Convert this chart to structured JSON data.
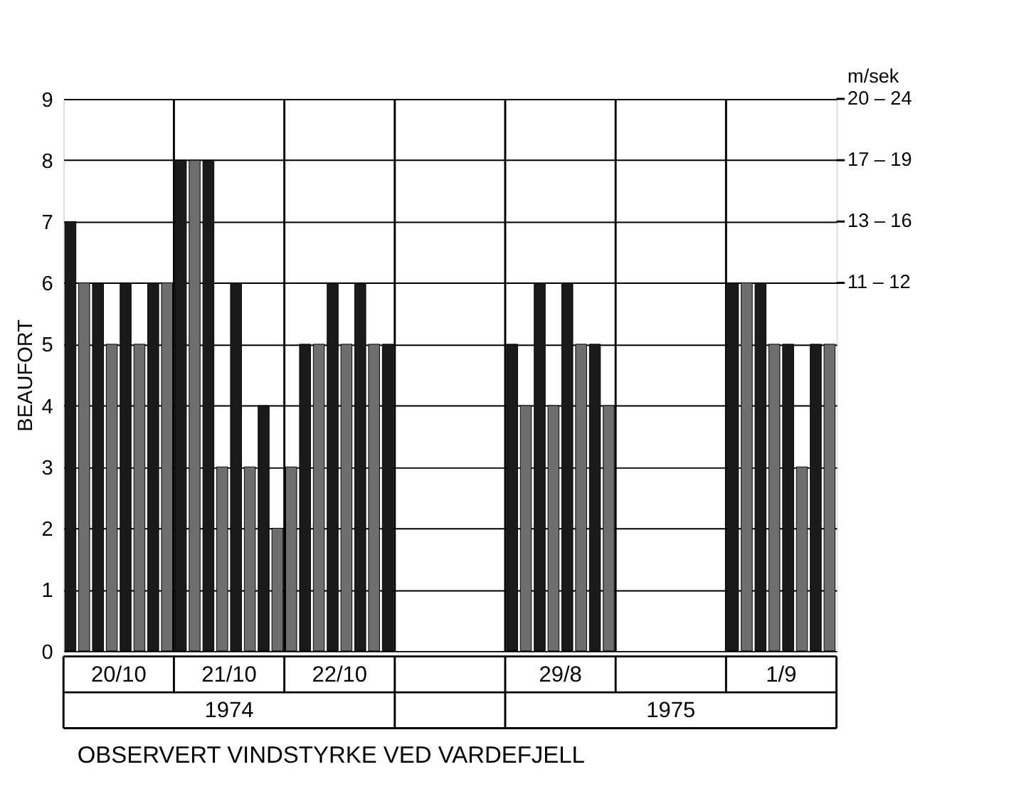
{
  "chart_data": {
    "type": "bar",
    "title": "OBSERVERT  VINDSTYRKE VED VARDEFJELL",
    "ylabel": "BEAUFORT",
    "y2label": "m/sek",
    "categories": [
      null,
      null,
      null,
      "20/10",
      null,
      null,
      null,
      null,
      null,
      null,
      null,
      "21/10",
      null,
      null,
      null,
      null,
      null,
      null,
      null,
      "22/10",
      null,
      null,
      null,
      null,
      null,
      null,
      null,
      null,
      null,
      null,
      null,
      null,
      null,
      null,
      null,
      "29/8",
      null,
      null,
      null,
      null,
      null,
      null,
      null,
      null,
      null,
      null,
      null,
      null,
      null,
      null,
      null,
      "1/9",
      null,
      null,
      null,
      null
    ],
    "values": [
      7,
      6,
      6,
      5,
      6,
      5,
      6,
      6,
      8,
      8,
      8,
      3,
      6,
      3,
      4,
      2,
      3,
      5,
      5,
      6,
      5,
      6,
      5,
      5,
      null,
      null,
      null,
      null,
      null,
      null,
      null,
      null,
      5,
      4,
      6,
      4,
      6,
      5,
      5,
      4,
      null,
      null,
      null,
      null,
      null,
      null,
      null,
      null,
      6,
      6,
      6,
      5,
      5,
      3,
      5,
      5
    ],
    "colors": [
      "#1a1a1a",
      "#6e6e6e",
      "#1a1a1a",
      "#6e6e6e",
      "#1a1a1a",
      "#6e6e6e",
      "#1a1a1a",
      "#6e6e6e",
      "#1a1a1a",
      "#6e6e6e",
      "#1a1a1a",
      "#6e6e6e",
      "#1a1a1a",
      "#6e6e6e",
      "#1a1a1a",
      "#6e6e6e",
      "#6e6e6e",
      "#1a1a1a",
      "#6e6e6e",
      "#1a1a1a",
      "#6e6e6e",
      "#1a1a1a",
      "#6e6e6e",
      "#1a1a1a",
      null,
      null,
      null,
      null,
      null,
      null,
      null,
      null,
      "#1a1a1a",
      "#6e6e6e",
      "#1a1a1a",
      "#6e6e6e",
      "#1a1a1a",
      "#6e6e6e",
      "#1a1a1a",
      "#6e6e6e",
      null,
      null,
      null,
      null,
      null,
      null,
      null,
      null,
      "#1a1a1a",
      "#6e6e6e",
      "#1a1a1a",
      "#6e6e6e",
      "#1a1a1a",
      "#6e6e6e",
      "#1a1a1a",
      "#6e6e6e"
    ],
    "ylim": [
      0,
      9
    ],
    "yticks": [
      0,
      1,
      2,
      3,
      4,
      5,
      6,
      7,
      8,
      9
    ],
    "grid": true,
    "annotations": [
      "1974",
      "1975",
      "11 – 12",
      "13 – 16",
      "17 – 19",
      "20 – 24"
    ]
  }
}
